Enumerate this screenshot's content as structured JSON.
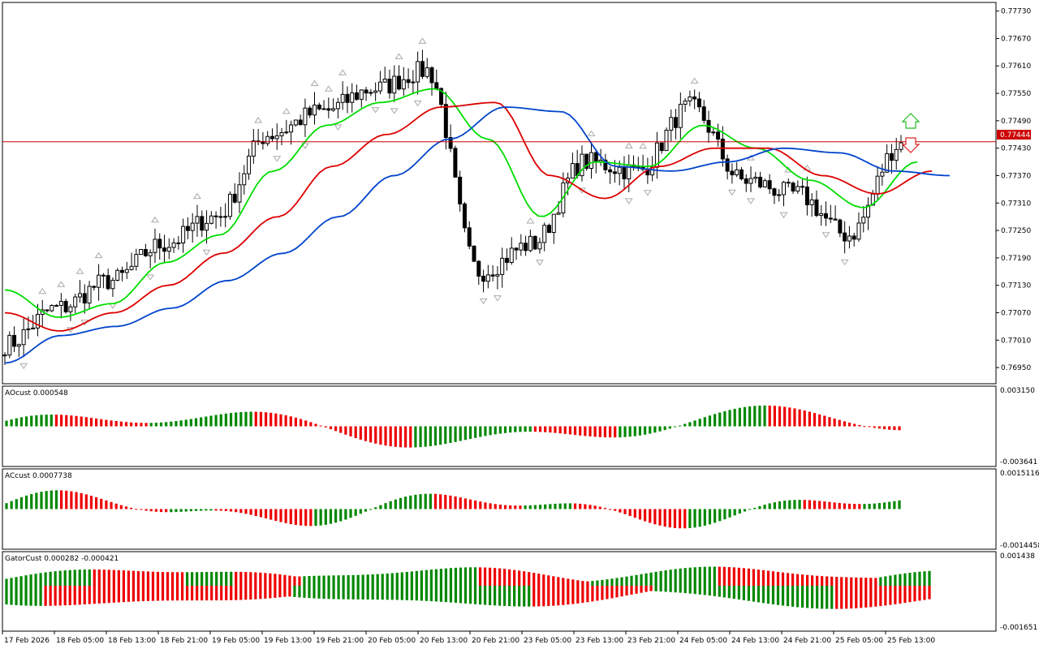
{
  "main": {
    "price_ticks": [
      "0.77730",
      "0.77670",
      "0.77610",
      "0.77550",
      "0.77490",
      "0.77430",
      "0.77370",
      "0.77310",
      "0.77250",
      "0.77190",
      "0.77130",
      "0.77070",
      "0.77010",
      "0.76950"
    ],
    "current_price": "0.77444",
    "colors": {
      "bull": "#000000",
      "bear": "#000000",
      "ma_fast": "#00dd00",
      "ma_mid": "#dd0000",
      "ma_slow": "#0044cc",
      "price_line": "#cc0000",
      "fractal": "#aaaaaa"
    }
  },
  "subpanels": [
    {
      "label": "AOcust 0.000548",
      "top": "0.003150",
      "bottom": "-0.003641"
    },
    {
      "label": "ACcust 0.0007738",
      "top": "0.0015116",
      "bottom": "-0.0014458"
    },
    {
      "label": "GatorCust 0.000282 -0.000421",
      "top": "0.001438",
      "bottom": "-0.001651"
    }
  ],
  "time_labels": [
    "17 Feb 2026",
    "18 Feb 05:00",
    "18 Feb 13:00",
    "18 Feb 21:00",
    "19 Feb 05:00",
    "19 Feb 13:00",
    "19 Feb 21:00",
    "20 Feb 05:00",
    "20 Feb 13:00",
    "20 Feb 21:00",
    "23 Feb 05:00",
    "23 Feb 13:00",
    "23 Feb 21:00",
    "24 Feb 05:00",
    "24 Feb 13:00",
    "24 Feb 21:00",
    "25 Feb 05:00",
    "25 Feb 13:00"
  ],
  "chart_data": [
    {
      "type": "line",
      "title": "",
      "x": [
        "17 Feb 2026",
        "18 Feb 05:00",
        "18 Feb 13:00",
        "18 Feb 21:00",
        "19 Feb 05:00",
        "19 Feb 13:00",
        "19 Feb 21:00",
        "20 Feb 05:00",
        "20 Feb 13:00",
        "20 Feb 21:00",
        "23 Feb 05:00",
        "23 Feb 13:00",
        "23 Feb 21:00",
        "24 Feb 05:00",
        "24 Feb 13:00",
        "24 Feb 21:00",
        "25 Feb 05:00",
        "25 Feb 13:00"
      ],
      "ylim": [
        0.7692,
        0.7774
      ],
      "close": [
        0.77,
        0.7708,
        0.7714,
        0.7722,
        0.7728,
        0.7746,
        0.7751,
        0.7756,
        0.776,
        0.7716,
        0.7722,
        0.774,
        0.7738,
        0.7752,
        0.7736,
        0.7733,
        0.7724,
        0.7744
      ],
      "series": [
        {
          "values": [
            0.7712,
            0.7706,
            0.7709,
            0.7718,
            0.7724,
            0.7738,
            0.7748,
            0.7753,
            0.7756,
            0.7745,
            0.7728,
            0.774,
            0.7739,
            0.7748,
            0.7743,
            0.7736,
            0.773,
            0.774
          ]
        },
        {
          "values": [
            0.7707,
            0.7703,
            0.7707,
            0.7713,
            0.772,
            0.7728,
            0.7739,
            0.7746,
            0.7752,
            0.7753,
            0.7737,
            0.7732,
            0.7739,
            0.7743,
            0.7743,
            0.7737,
            0.7733,
            0.7738
          ]
        },
        {
          "values": [
            0.7696,
            0.7702,
            0.7704,
            0.7708,
            0.7714,
            0.772,
            0.7728,
            0.7737,
            0.7745,
            0.7752,
            0.7751,
            0.7739,
            0.7738,
            0.774,
            0.7743,
            0.7742,
            0.7738,
            0.7737
          ]
        }
      ]
    }
  ]
}
